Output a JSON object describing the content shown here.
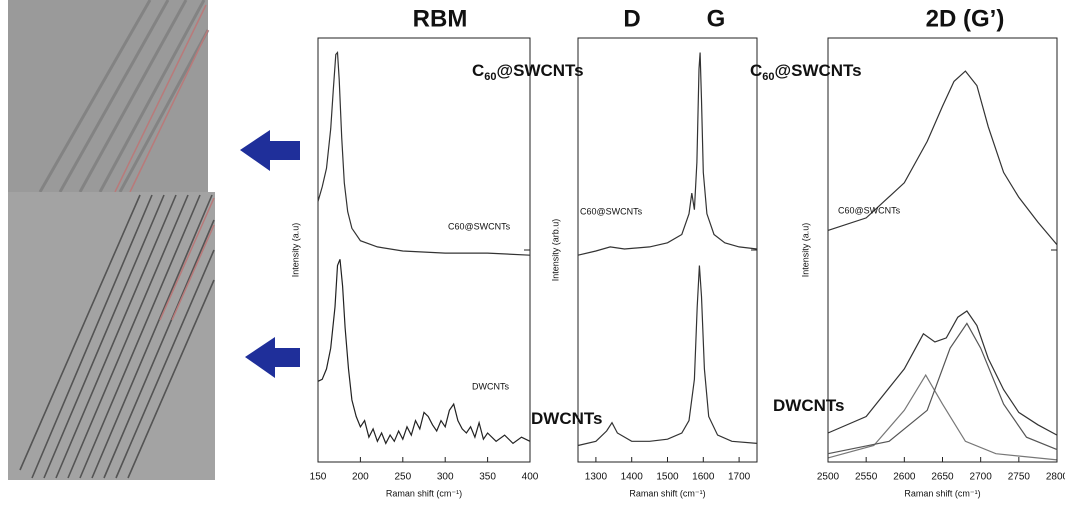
{
  "figure": {
    "headers": [
      "RBM",
      "D",
      "G",
      "2D (G’)"
    ],
    "big_labels": [
      {
        "main": "C",
        "sub": "60",
        "rest": "@SWCNTs"
      },
      {
        "main": "C",
        "sub": "60",
        "rest": "@SWCNTs"
      },
      {
        "main": "DWCNTs"
      },
      {
        "main": "DWCNTs"
      }
    ]
  },
  "chart_data": [
    {
      "type": "line",
      "xlabel": "Raman shift (cm⁻¹)",
      "ylabel": "Intensity (a.u)",
      "xlim": [
        150,
        400
      ],
      "xticks": [
        150,
        200,
        250,
        300,
        350,
        400
      ],
      "ylim": [
        0,
        2.05
      ],
      "annotations": [
        "C60@SWCNTs",
        "DWCNTs"
      ],
      "series": [
        {
          "color": "#333333",
          "x": [
            150,
            155,
            160,
            165,
            168,
            171,
            173,
            175,
            178,
            181,
            185,
            190,
            200,
            220,
            250,
            300,
            350,
            400
          ],
          "values": [
            1.26,
            1.33,
            1.42,
            1.61,
            1.8,
            1.97,
            1.98,
            1.85,
            1.57,
            1.35,
            1.21,
            1.13,
            1.07,
            1.04,
            1.02,
            1.01,
            1.01,
            1.0
          ]
        },
        {
          "color": "#222222",
          "x": [
            150,
            155,
            160,
            165,
            170,
            173,
            176,
            179,
            182,
            186,
            190,
            195,
            200,
            205,
            210,
            215,
            220,
            225,
            230,
            235,
            240,
            245,
            250,
            255,
            260,
            265,
            270,
            275,
            280,
            285,
            290,
            295,
            300,
            305,
            310,
            315,
            320,
            325,
            330,
            335,
            340,
            345,
            350,
            360,
            370,
            380,
            390,
            400
          ],
          "values": [
            0.39,
            0.4,
            0.45,
            0.55,
            0.75,
            0.95,
            0.98,
            0.85,
            0.65,
            0.45,
            0.3,
            0.22,
            0.17,
            0.2,
            0.12,
            0.16,
            0.1,
            0.14,
            0.09,
            0.13,
            0.1,
            0.15,
            0.11,
            0.17,
            0.13,
            0.2,
            0.16,
            0.24,
            0.22,
            0.18,
            0.15,
            0.2,
            0.17,
            0.25,
            0.28,
            0.2,
            0.16,
            0.14,
            0.17,
            0.12,
            0.19,
            0.11,
            0.14,
            0.1,
            0.13,
            0.09,
            0.12,
            0.1
          ]
        }
      ]
    },
    {
      "type": "line",
      "xlabel": "Raman shift (cm⁻¹)",
      "ylabel": "Intensity (arb.u)",
      "xlim": [
        1250,
        1750
      ],
      "xticks": [
        1300,
        1400,
        1500,
        1600,
        1700
      ],
      "ylim": [
        0,
        2.05
      ],
      "annotations": [
        "C60@SWCNTs"
      ],
      "series": [
        {
          "color": "#333333",
          "x": [
            1250,
            1300,
            1340,
            1380,
            1450,
            1500,
            1540,
            1560,
            1568,
            1575,
            1582,
            1588,
            1591,
            1595,
            1600,
            1610,
            1630,
            1660,
            1700,
            1750
          ],
          "values": [
            1.0,
            1.02,
            1.04,
            1.03,
            1.04,
            1.06,
            1.1,
            1.2,
            1.3,
            1.22,
            1.45,
            1.9,
            1.98,
            1.75,
            1.4,
            1.2,
            1.1,
            1.06,
            1.04,
            1.03
          ]
        },
        {
          "color": "#333333",
          "x": [
            1250,
            1300,
            1330,
            1345,
            1360,
            1400,
            1450,
            1500,
            1540,
            1560,
            1575,
            1583,
            1589,
            1595,
            1603,
            1615,
            1640,
            1680,
            1750
          ],
          "values": [
            0.08,
            0.1,
            0.15,
            0.19,
            0.14,
            0.1,
            0.1,
            0.11,
            0.14,
            0.2,
            0.4,
            0.75,
            0.95,
            0.8,
            0.45,
            0.22,
            0.13,
            0.1,
            0.09
          ]
        }
      ]
    },
    {
      "type": "line",
      "xlabel": "Raman shift (cm⁻¹)",
      "ylabel": "Intensity (a.u)",
      "xlim": [
        2500,
        2800
      ],
      "xticks": [
        2500,
        2550,
        2600,
        2650,
        2700,
        2750,
        2800
      ],
      "ylim": [
        0,
        2.05
      ],
      "annotations": [
        "C60@SWCNTs"
      ],
      "series": [
        {
          "color": "#333333",
          "x": [
            2500,
            2550,
            2600,
            2630,
            2650,
            2665,
            2680,
            2695,
            2710,
            2730,
            2750,
            2775,
            2800
          ],
          "values": [
            1.12,
            1.18,
            1.35,
            1.55,
            1.72,
            1.84,
            1.89,
            1.82,
            1.62,
            1.4,
            1.28,
            1.16,
            1.05
          ]
        },
        {
          "color": "#333333",
          "x": [
            2500,
            2550,
            2600,
            2625,
            2640,
            2655,
            2670,
            2682,
            2695,
            2710,
            2730,
            2750,
            2775,
            2800
          ],
          "values": [
            0.14,
            0.22,
            0.45,
            0.62,
            0.58,
            0.6,
            0.7,
            0.73,
            0.66,
            0.5,
            0.35,
            0.24,
            0.18,
            0.13
          ]
        },
        {
          "color": "#777777",
          "x": [
            2500,
            2560,
            2600,
            2628,
            2650,
            2680,
            2720,
            2800
          ],
          "values": [
            0.02,
            0.08,
            0.25,
            0.42,
            0.28,
            0.1,
            0.04,
            0.01
          ]
        },
        {
          "color": "#555555",
          "x": [
            2500,
            2580,
            2630,
            2660,
            2682,
            2700,
            2730,
            2760,
            2800
          ],
          "values": [
            0.04,
            0.1,
            0.25,
            0.55,
            0.67,
            0.55,
            0.28,
            0.12,
            0.06
          ]
        }
      ]
    }
  ]
}
